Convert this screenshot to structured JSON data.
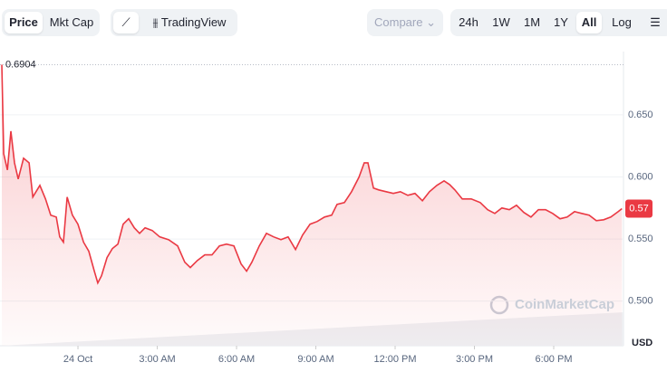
{
  "toolbar": {
    "view_tabs": [
      "Price",
      "Mkt Cap"
    ],
    "chart_tool": "TradingView",
    "compare": "Compare",
    "ranges": [
      "24h",
      "1W",
      "1M",
      "1Y",
      "All"
    ],
    "scale": "Log"
  },
  "chart_data": {
    "type": "line",
    "color": "#ea3943",
    "watermark": "CoinMarketCap",
    "currency": "USD",
    "high": 0.6904,
    "last_label": "0.57",
    "x": [
      -2.88,
      -2.81,
      -2.67,
      -2.54,
      -2.4,
      -2.26,
      -2.06,
      -1.85,
      -1.71,
      -1.44,
      -1.23,
      -1.03,
      -0.82,
      -0.69,
      -0.55,
      -0.41,
      -0.21,
      0,
      0.21,
      0.41,
      0.62,
      0.75,
      0.89,
      1.1,
      1.3,
      1.51,
      1.71,
      1.92,
      2.13,
      2.33,
      2.54,
      2.81,
      3.09,
      3.43,
      3.77,
      4.04,
      4.25,
      4.52,
      4.8,
      5.07,
      5.35,
      5.62,
      5.9,
      6.17,
      6.38,
      6.58,
      6.86,
      7.13,
      7.4,
      7.68,
      7.95,
      8.23,
      8.5,
      8.78,
      9.05,
      9.33,
      9.6,
      9.8,
      10.08,
      10.35,
      10.63,
      10.83,
      10.97,
      11.18,
      11.38,
      11.66,
      11.93,
      12.2,
      12.48,
      12.75,
      13.03,
      13.3,
      13.58,
      13.85,
      14.06,
      14.26,
      14.54,
      14.88,
      15.22,
      15.5,
      15.77,
      16.04,
      16.32,
      16.59,
      16.87,
      17.14,
      17.42,
      17.69,
      17.96,
      18.24,
      18.51,
      18.79,
      19.06,
      19.34,
      19.61,
      19.89,
      20.16,
      20.44,
      20.58
    ],
    "values": [
      0.6904,
      0.6187,
      0.6056,
      0.6369,
      0.6114,
      0.5983,
      0.6151,
      0.6114,
      0.5838,
      0.5932,
      0.5823,
      0.5692,
      0.5677,
      0.5517,
      0.5474,
      0.5838,
      0.5692,
      0.5619,
      0.5474,
      0.5401,
      0.5241,
      0.5146,
      0.5204,
      0.535,
      0.5423,
      0.5459,
      0.5619,
      0.5663,
      0.559,
      0.5546,
      0.559,
      0.5568,
      0.5517,
      0.5495,
      0.5444,
      0.5313,
      0.527,
      0.5328,
      0.5372,
      0.5372,
      0.5444,
      0.5459,
      0.5444,
      0.5299,
      0.5241,
      0.5313,
      0.5444,
      0.5546,
      0.5517,
      0.5495,
      0.5517,
      0.5415,
      0.5532,
      0.5619,
      0.5641,
      0.5677,
      0.5692,
      0.5779,
      0.5794,
      0.5881,
      0.5998,
      0.6114,
      0.6114,
      0.591,
      0.5896,
      0.5881,
      0.5867,
      0.5881,
      0.5852,
      0.5867,
      0.5808,
      0.5881,
      0.5932,
      0.5969,
      0.5939,
      0.5896,
      0.5823,
      0.5823,
      0.5794,
      0.5736,
      0.5706,
      0.575,
      0.5736,
      0.5772,
      0.5714,
      0.5677,
      0.5736,
      0.5736,
      0.5706,
      0.5663,
      0.5677,
      0.5721,
      0.5706,
      0.5692,
      0.5648,
      0.5655,
      0.5677,
      0.5721,
      0.5745
    ],
    "xlim": [
      -2.95,
      20.64
    ],
    "xticks": [
      {
        "value": 0,
        "label": "24 Oct"
      },
      {
        "value": 3,
        "label": "3:00 AM"
      },
      {
        "value": 6,
        "label": "6:00 AM"
      },
      {
        "value": 9,
        "label": "9:00 AM"
      },
      {
        "value": 12,
        "label": "12:00 PM"
      },
      {
        "value": 15,
        "label": "3:00 PM"
      },
      {
        "value": 18,
        "label": "6:00 PM"
      }
    ],
    "ylim": [
      0.464,
      0.701
    ],
    "yticks": [
      {
        "value": 0.65,
        "label": "0.650"
      },
      {
        "value": 0.6,
        "label": "0.600"
      },
      {
        "value": 0.55,
        "label": "0.550"
      },
      {
        "value": 0.5,
        "label": "0.500"
      }
    ],
    "grid": true
  }
}
